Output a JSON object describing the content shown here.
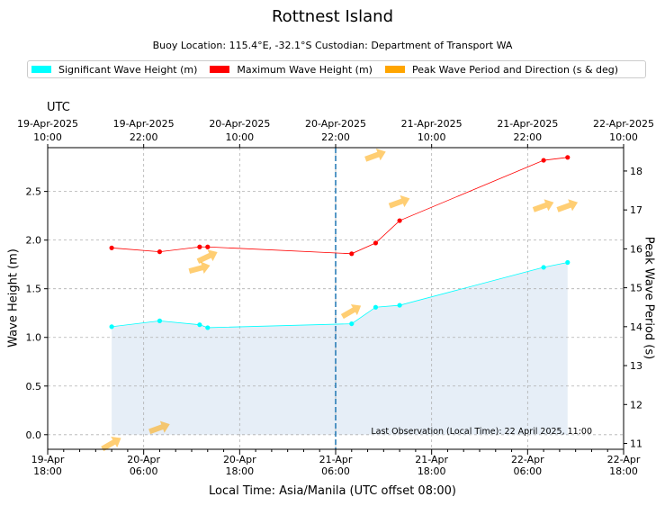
{
  "header": {
    "title": "Rottnest Island",
    "subtitle": "Buoy Location: 115.4°E, -32.1°S     Custodian: Department of Transport WA"
  },
  "legend": {
    "items": [
      {
        "label": "Significant Wave Height (m)",
        "color": "#00ffff"
      },
      {
        "label": "Maximum Wave Height (m)",
        "color": "#ff0000"
      },
      {
        "label": "Peak Wave Period and Direction (s & deg)",
        "color": "#ffa500"
      }
    ]
  },
  "chart_data": {
    "type": "line",
    "title": "Rottnest Island",
    "xlabel": "Local Time: Asia/Manila (UTC offset 08:00)",
    "ylabel_left": "Wave Height (m)",
    "ylabel_right": "Peak Wave Period (s)",
    "top_axis_title": "UTC",
    "x_unit": "hours since 19-Apr-2025 18:00 local",
    "xlim": [
      0,
      72
    ],
    "ylim": [
      -0.15,
      2.95
    ],
    "y2lim": [
      10.85,
      18.6
    ],
    "x_ticks": [
      {
        "x": 0,
        "line1": "19-Apr",
        "line2": "18:00"
      },
      {
        "x": 12,
        "line1": "20-Apr",
        "line2": "06:00"
      },
      {
        "x": 24,
        "line1": "20-Apr",
        "line2": "18:00"
      },
      {
        "x": 36,
        "line1": "21-Apr",
        "line2": "06:00"
      },
      {
        "x": 48,
        "line1": "21-Apr",
        "line2": "18:00"
      },
      {
        "x": 60,
        "line1": "22-Apr",
        "line2": "06:00"
      },
      {
        "x": 72,
        "line1": "22-Apr",
        "line2": "18:00"
      }
    ],
    "top_ticks": [
      {
        "x": 0,
        "line1": "19-Apr-2025",
        "line2": "10:00"
      },
      {
        "x": 12,
        "line1": "19-Apr-2025",
        "line2": "22:00"
      },
      {
        "x": 24,
        "line1": "20-Apr-2025",
        "line2": "10:00"
      },
      {
        "x": 36,
        "line1": "20-Apr-2025",
        "line2": "22:00"
      },
      {
        "x": 48,
        "line1": "21-Apr-2025",
        "line2": "10:00"
      },
      {
        "x": 60,
        "line1": "21-Apr-2025",
        "line2": "22:00"
      },
      {
        "x": 72,
        "line1": "22-Apr-2025",
        "line2": "10:00"
      }
    ],
    "y_ticks": [
      "0.0",
      "0.5",
      "1.0",
      "1.5",
      "2.0",
      "2.5"
    ],
    "y2_ticks": [
      "11",
      "12",
      "13",
      "14",
      "15",
      "16",
      "17",
      "18"
    ],
    "series": [
      {
        "name": "Significant Wave Height (m)",
        "color": "#00ffff",
        "x": [
          8,
          14,
          19,
          20,
          38,
          41,
          44,
          62,
          65
        ],
        "values": [
          1.11,
          1.17,
          1.13,
          1.1,
          1.14,
          1.31,
          1.33,
          1.72,
          1.77
        ]
      },
      {
        "name": "Maximum Wave Height (m)",
        "color": "#ff0000",
        "x": [
          8,
          14,
          19,
          20,
          38,
          41,
          44,
          62,
          65
        ],
        "values": [
          1.92,
          1.88,
          1.93,
          1.93,
          1.86,
          1.97,
          2.2,
          2.82,
          2.85
        ]
      }
    ],
    "period_arrows": {
      "name": "Peak Wave Period and Direction (s & deg)",
      "color": "#ffa500",
      "x": [
        8,
        14,
        19,
        20,
        38,
        41,
        44,
        62,
        65
      ],
      "period_s": [
        11.0,
        11.4,
        15.5,
        15.8,
        14.4,
        18.4,
        17.2,
        17.1,
        17.1
      ],
      "direction_deg": [
        240,
        250,
        255,
        245,
        240,
        250,
        250,
        250,
        250
      ]
    },
    "now_line_x": 36,
    "annotation": "Last Observation (Local Time): 22 April 2025, 11:00"
  }
}
